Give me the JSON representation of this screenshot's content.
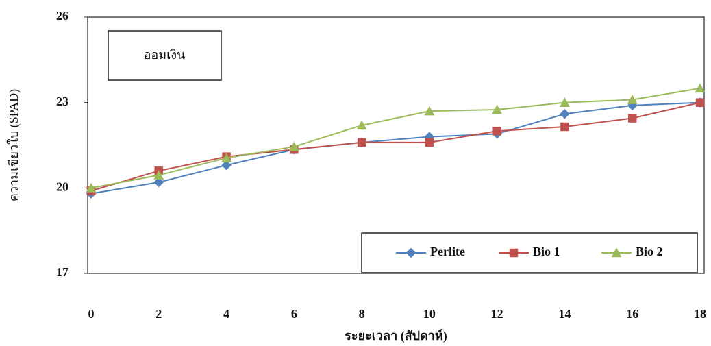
{
  "chart_data": {
    "type": "line",
    "annotation": "ออมเงิน",
    "x_label": "ระยะเวลา (สัปดาห์)",
    "y_label": "ความเขียวใบ (SPAD)",
    "x": [
      0,
      2,
      4,
      6,
      8,
      10,
      12,
      14,
      16,
      18
    ],
    "ylim": [
      17,
      26
    ],
    "yticks": [
      17,
      20,
      23,
      26
    ],
    "legend": "bottom-right",
    "series": [
      {
        "name": "Perlite",
        "color": "#4f81bd",
        "marker": "diamond",
        "values": [
          19.8,
          20.2,
          20.8,
          21.35,
          21.6,
          21.8,
          21.9,
          22.6,
          22.9,
          23.0
        ]
      },
      {
        "name": "Bio 1",
        "color": "#c0504d",
        "marker": "square",
        "values": [
          19.9,
          20.6,
          21.1,
          21.35,
          21.6,
          21.6,
          22.0,
          22.15,
          22.45,
          23.0
        ]
      },
      {
        "name": "Bio 2",
        "color": "#9bbb59",
        "marker": "triangle",
        "values": [
          20.0,
          20.45,
          21.05,
          21.45,
          22.2,
          22.7,
          22.75,
          23.0,
          23.1,
          23.5
        ]
      }
    ]
  }
}
